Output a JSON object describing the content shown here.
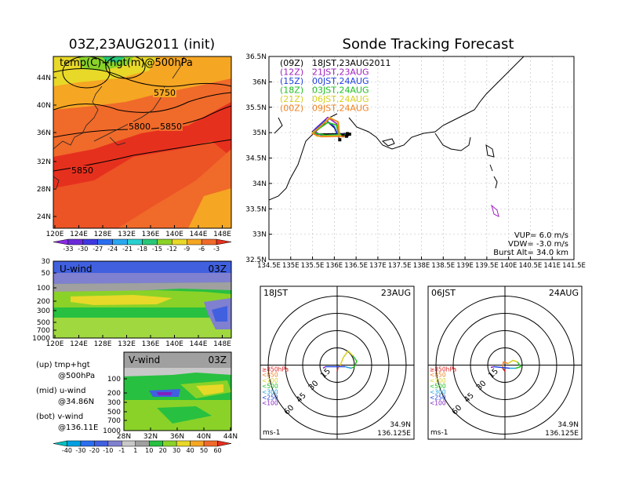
{
  "left_title": "03Z,23AUG2011 (init)",
  "main_title": "Sonde Tracking Forecast",
  "top_map": {
    "label": "temp(C)+hgt(m)@500hPa",
    "lat_ticks": [
      "44N",
      "40N",
      "36N",
      "32N",
      "28N",
      "24N"
    ],
    "lon_ticks": [
      "120E",
      "124E",
      "128E",
      "132E",
      "136E",
      "140E",
      "144E",
      "148E"
    ],
    "contour_labels": [
      "5750",
      "5800",
      "5850",
      "5850"
    ],
    "colorbar_labels": [
      "-33",
      "-30",
      "-27",
      "-24",
      "-21",
      "-18",
      "-15",
      "-12",
      "-9",
      "-6",
      "-3"
    ],
    "colorbar_colors": [
      "#8a2be2",
      "#6a2bd9",
      "#3d38e0",
      "#2a6ef0",
      "#2aa8f0",
      "#2ad0d0",
      "#28c878",
      "#8ad228",
      "#e8d828",
      "#f5a623",
      "#f06a2a",
      "#e6301e"
    ]
  },
  "uwind": {
    "label": "U-wind",
    "time": "03Z",
    "y_ticks": [
      "30",
      "50",
      "100",
      "200",
      "300",
      "500",
      "700",
      "1000"
    ],
    "x_ticks": [
      "120E",
      "124E",
      "128E",
      "132E",
      "136E",
      "140E",
      "144E",
      "148E"
    ]
  },
  "vwind": {
    "label": "V-wind",
    "time": "03Z",
    "y_ticks": [
      "100",
      "200",
      "300",
      "500",
      "700",
      "1000"
    ],
    "x_ticks": [
      "28N",
      "32N",
      "36N",
      "40N",
      "44N"
    ]
  },
  "wind_colorbar": {
    "labels": [
      "-40",
      "-30",
      "-20",
      "-10",
      "-1",
      "1",
      "10",
      "20",
      "30",
      "40",
      "50",
      "60"
    ],
    "colors": [
      "#00c0c0",
      "#00a0e0",
      "#2a6ef0",
      "#4060e0",
      "#8080d0",
      "#c8c8c8",
      "#a0a0a0",
      "#28c040",
      "#8ad228",
      "#e8d828",
      "#f5a623",
      "#f06a2a",
      "#e6301e"
    ]
  },
  "legend_notes": [
    {
      "line1": "(up) tmp+hgt",
      "line2": "@500hPa"
    },
    {
      "line1": "(mid) u-wind",
      "line2": "@34.86N"
    },
    {
      "line1": "(bot) v-wind",
      "line2": "@136.11E"
    }
  ],
  "track_map": {
    "lat_ticks": [
      "36.5N",
      "36N",
      "35.5N",
      "35N",
      "34.5N",
      "34N",
      "33.5N",
      "33N",
      "32.5N"
    ],
    "lon_ticks": [
      "134.5E",
      "135E",
      "135.5E",
      "136E",
      "136.5E",
      "137E",
      "137.5E",
      "138E",
      "138.5E",
      "139E",
      "139.5E",
      "140E",
      "140.5E",
      "141E",
      "141.5E"
    ],
    "series": [
      {
        "code": "(09Z)",
        "label": "18JST,23AUG2011",
        "color": "#000000"
      },
      {
        "code": "(12Z)",
        "label": "21JST,23AUG",
        "color": "#a020c0"
      },
      {
        "code": "(15Z)",
        "label": "00JST,24AUG",
        "color": "#2040e0"
      },
      {
        "code": "(18Z)",
        "label": "03JST,24AUG",
        "color": "#20c020"
      },
      {
        "code": "(21Z)",
        "label": "06JST,24AUG",
        "color": "#d8d020"
      },
      {
        "code": "(00Z)",
        "label": "09JST,24AUG",
        "color": "#f08020"
      }
    ],
    "params": [
      "VUP= 6.0 m/s",
      "VDW= -3.0 m/s",
      "Burst Alt= 34.0 km"
    ]
  },
  "hodographs": [
    {
      "time": "18JST",
      "date": "23AUG",
      "ring_labels": [
        "15",
        "30",
        "45",
        "60"
      ],
      "levels": [
        "≥850hPa",
        "<850",
        "<700",
        "<500",
        "<300",
        "<250",
        "<100"
      ],
      "level_colors": [
        "#e02020",
        "#f08020",
        "#d8d020",
        "#20c020",
        "#20a0e0",
        "#2040e0",
        "#8020c0"
      ],
      "unit": "ms-1",
      "lat": "34.9N",
      "lon": "136.125E"
    },
    {
      "time": "06JST",
      "date": "24AUG",
      "ring_labels": [
        "15",
        "30",
        "45",
        "60"
      ],
      "levels": [
        "≥850hPa",
        "<850",
        "<700",
        "<500",
        "<300",
        "<250",
        "<100"
      ],
      "level_colors": [
        "#e02020",
        "#f08020",
        "#d8d020",
        "#20c020",
        "#20a0e0",
        "#2040e0",
        "#8020c0"
      ],
      "unit": "ms-1",
      "lat": "34.9N",
      "lon": "136.125E"
    }
  ],
  "chart_data": {
    "type": "line",
    "title": "Sonde Tracking Forecast",
    "xlim": [
      134.5,
      141.5
    ],
    "ylim": [
      32.5,
      36.5
    ],
    "series": [
      {
        "name": "(09Z) 18JST,23AUG2011",
        "x": [
          136.125,
          136.0,
          135.8,
          135.6,
          135.5,
          135.55,
          136.3
        ],
        "y": [
          34.86,
          35.1,
          35.25,
          35.1,
          35.02,
          34.97,
          34.98
        ]
      },
      {
        "name": "(12Z) 21JST,23AUG",
        "x": [
          136.125,
          136.05,
          135.85,
          135.62,
          135.52,
          135.7,
          136.25
        ],
        "y": [
          34.86,
          35.18,
          35.3,
          35.12,
          35.04,
          34.95,
          34.96
        ]
      },
      {
        "name": "(15Z) 00JST,24AUG",
        "x": [
          136.125,
          136.0,
          135.8,
          135.58,
          135.5,
          135.75,
          136.35
        ],
        "y": [
          34.86,
          35.12,
          35.25,
          35.08,
          35.0,
          34.95,
          34.97
        ]
      },
      {
        "name": "(18Z) 03JST,24AUG",
        "x": [
          136.125,
          136.05,
          135.85,
          135.6,
          135.52,
          135.8,
          136.3
        ],
        "y": [
          34.86,
          35.15,
          35.2,
          35.05,
          35.0,
          34.95,
          34.96
        ]
      },
      {
        "name": "(21Z) 06JST,24AUG",
        "x": [
          136.125,
          136.1,
          135.9,
          135.65,
          135.5,
          135.6,
          136.2
        ],
        "y": [
          34.86,
          35.2,
          35.3,
          35.1,
          35.0,
          34.93,
          34.94
        ]
      },
      {
        "name": "(00Z) 09JST,24AUG",
        "x": [
          136.125,
          136.08,
          135.9,
          135.62,
          135.5,
          135.7,
          136.28
        ],
        "y": [
          34.86,
          35.22,
          35.28,
          35.08,
          34.98,
          34.92,
          34.93
        ]
      }
    ],
    "annotations": [
      "VUP= 6.0 m/s",
      "VDW= -3.0 m/s",
      "Burst Alt= 34.0 km"
    ]
  }
}
